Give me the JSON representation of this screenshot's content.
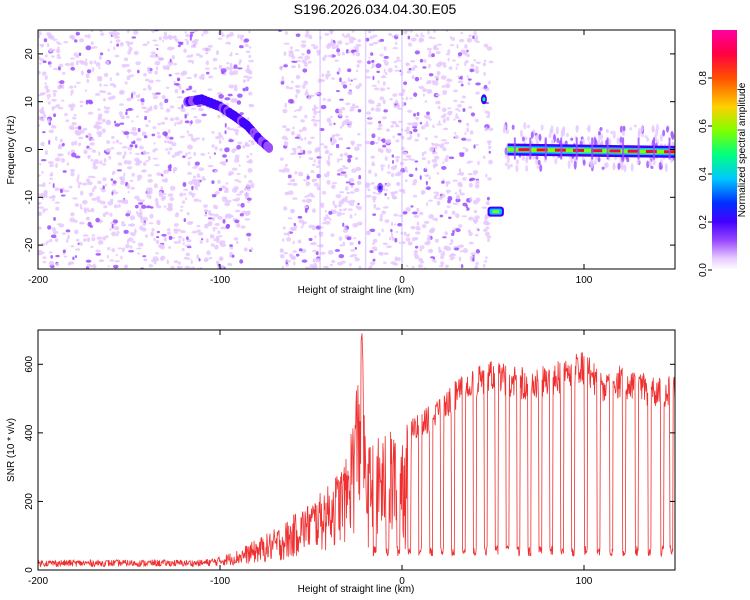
{
  "title": "S196.2026.034.04.30.E05",
  "chart_data": [
    {
      "type": "heatmap",
      "xlabel": "Height of straight line (km)",
      "ylabel": "Frequency (Hz)",
      "xlim": [
        -200,
        150
      ],
      "ylim": [
        -25,
        25
      ],
      "xticks": [
        -200,
        -100,
        0,
        100
      ],
      "yticks": [
        -20,
        -10,
        0,
        10,
        20
      ],
      "colorbar": {
        "label": "Normalized spectral amplitude",
        "range": [
          0,
          1
        ],
        "ticks": [
          "0.0",
          "0.2",
          "0.4",
          "0.6",
          "0.8"
        ],
        "colormap": [
          "#ffffff",
          "#e6c8ff",
          "#9b4dff",
          "#4400ff",
          "#0030ff",
          "#00c8ff",
          "#00ff80",
          "#80ff00",
          "#ffd000",
          "#ff5000",
          "#ff0040",
          "#ff00a0"
        ]
      },
      "features": [
        {
          "name": "descending tone",
          "x": [
            -118,
            -110,
            -100,
            -92,
            -85,
            -78,
            -72
          ],
          "y": [
            10,
            10.5,
            9,
            7,
            5,
            2,
            0
          ],
          "amplitude": 0.25
        },
        {
          "name": "tone near 45 km",
          "x": [
            45
          ],
          "y": [
            10.5
          ],
          "amplitude": 0.3
        },
        {
          "name": "tone at -13 Hz",
          "x": [
            47,
            56
          ],
          "y": [
            -13,
            -13
          ],
          "amplitude": 0.55
        },
        {
          "name": "carrier line near 0 Hz",
          "x": [
            58,
            150
          ],
          "y": [
            0,
            -0.5
          ],
          "amplitude": 0.9
        },
        {
          "name": "tone near -12 km",
          "x": [
            -12
          ],
          "y": [
            -8
          ],
          "amplitude": 0.2
        }
      ],
      "blank_gaps_km": [
        [
          -82,
          -67
        ],
        [
          -23,
          -19
        ],
        [
          42,
          45
        ],
        [
          49,
          56
        ]
      ]
    },
    {
      "type": "line",
      "xlabel": "Height of straight line (km)",
      "ylabel": "SNR (10 * v/v)",
      "xlim": [
        -200,
        150
      ],
      "ylim": [
        0,
        700
      ],
      "xticks": [
        -200,
        -100,
        0,
        100
      ],
      "yticks": [
        0,
        200,
        400,
        600
      ],
      "color": "#f03030",
      "series": [
        {
          "name": "SNR",
          "envelope_x": [
            -200,
            -150,
            -110,
            -100,
            -90,
            -80,
            -70,
            -60,
            -50,
            -40,
            -30,
            -22,
            -20,
            -10,
            0,
            10,
            20,
            30,
            40,
            50,
            60,
            70,
            80,
            90,
            100,
            110,
            120,
            130,
            140,
            150
          ],
          "envelope_upper": [
            30,
            30,
            30,
            40,
            60,
            90,
            120,
            160,
            200,
            250,
            330,
            690,
            360,
            400,
            420,
            460,
            500,
            560,
            600,
            610,
            600,
            590,
            600,
            620,
            640,
            580,
            600,
            580,
            560,
            570
          ],
          "envelope_lower": [
            10,
            10,
            10,
            12,
            15,
            20,
            25,
            30,
            40,
            50,
            70,
            100,
            50,
            40,
            40,
            40,
            50,
            60,
            70,
            70,
            60,
            60,
            60,
            60,
            60,
            60,
            60,
            60,
            60,
            60
          ],
          "dropout_x": [
            -15,
            -8,
            -2,
            4,
            10,
            16,
            22,
            28,
            34,
            40,
            46,
            52,
            58,
            64,
            70,
            76,
            82,
            88,
            94,
            101,
            108,
            115,
            122,
            129,
            136,
            143,
            148
          ],
          "dropout_min": 40
        }
      ]
    }
  ]
}
